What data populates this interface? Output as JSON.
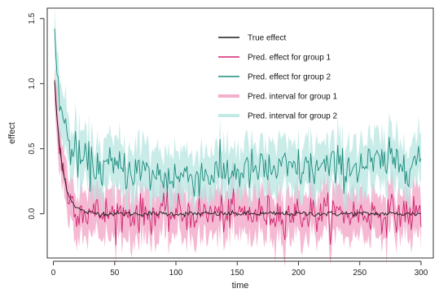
{
  "chart_data": {
    "type": "line",
    "title": "",
    "xlabel": "time",
    "ylabel": "effect",
    "xlim": [
      -5,
      310
    ],
    "ylim": [
      -0.34,
      1.58
    ],
    "x_ticks": [
      0,
      50,
      100,
      150,
      200,
      250,
      300
    ],
    "y_ticks": [
      0.0,
      0.5,
      1.0,
      1.5
    ],
    "y_tick_labels": [
      "0.0",
      "0.5",
      "1.0",
      "1.5"
    ],
    "grid": false,
    "legend_position": "top-right",
    "x": [
      1,
      300
    ],
    "series": [
      {
        "name": "True effect",
        "kind": "line",
        "color": "#1a1a1a",
        "description": "Smooth curve decaying from about 1.0 at t=1 to about 0.0 by t≈25, then fluctuating near 0.0 through t=300.",
        "start_value": 1.03,
        "plateau_value": 0.0,
        "decay_time": 6,
        "noise_sd": 0.01
      },
      {
        "name": "Pred. effect for group 1",
        "kind": "line",
        "color": "#d0246e",
        "description": "Noisy curve starting near 1.03, falling to about 0.0 by t≈25, oscillating within roughly -0.15 to 0.15.",
        "start_value": 1.03,
        "plateau_value": 0.0,
        "decay_time": 6,
        "noise_sd": 0.07
      },
      {
        "name": "Pred. effect for group 2",
        "kind": "line",
        "color": "#1b8b7c",
        "description": "Noisy curve starting near 1.35, dropping to about 0.35 by t≈30, dipping to ~0.28 around t=80-120, rising to ~0.42 by t=300.",
        "start_value": 1.35,
        "plateau_points": [
          [
            25,
            0.36
          ],
          [
            60,
            0.35
          ],
          [
            90,
            0.28
          ],
          [
            120,
            0.3
          ],
          [
            160,
            0.33
          ],
          [
            220,
            0.35
          ],
          [
            260,
            0.38
          ],
          [
            300,
            0.42
          ]
        ],
        "decay_time": 7,
        "noise_sd": 0.08
      },
      {
        "name": "Pred. interval for group 1",
        "kind": "band",
        "color": "#f2a1c4",
        "half_width": 0.14
      },
      {
        "name": "Pred. interval for group 2",
        "kind": "band",
        "color": "#b7e6e1",
        "half_width": 0.15
      }
    ]
  }
}
